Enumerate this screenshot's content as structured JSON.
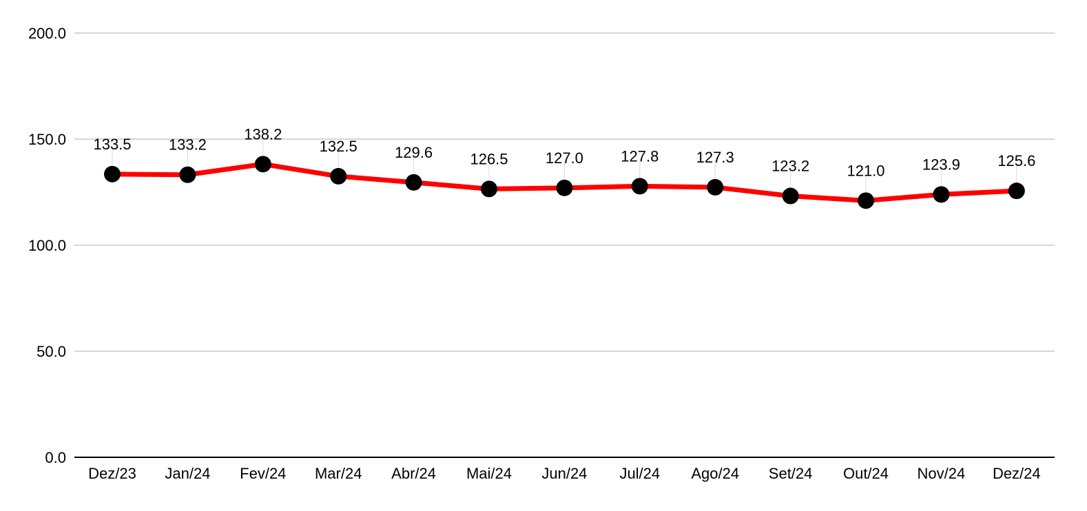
{
  "chart_data": {
    "type": "line",
    "title": "",
    "xlabel": "",
    "ylabel": "",
    "categories": [
      "Dez/23",
      "Jan/24",
      "Fev/24",
      "Mar/24",
      "Abr/24",
      "Mai/24",
      "Jun/24",
      "Jul/24",
      "Ago/24",
      "Set/24",
      "Out/24",
      "Nov/24",
      "Dez/24"
    ],
    "series": [
      {
        "values": [
          133.5,
          133.2,
          138.2,
          132.5,
          129.6,
          126.5,
          127.0,
          127.8,
          127.3,
          123.2,
          121.0,
          123.9,
          125.6
        ],
        "data_labels": [
          "133.5",
          "133.2",
          "138.2",
          "132.5",
          "129.6",
          "126.5",
          "127.0",
          "127.8",
          "127.3",
          "123.2",
          "121.0",
          "123.9",
          "125.6"
        ],
        "line_color": "#ff0000",
        "marker_color": "#000000"
      }
    ],
    "ylim": [
      0,
      200
    ],
    "y_ticks": [
      0,
      50,
      100,
      150,
      200
    ],
    "y_tick_labels": [
      "0.0",
      "50.0",
      "100.0",
      "150.0",
      "200.0"
    ],
    "grid": true,
    "legend": "none",
    "colors": {
      "grid": "#c8c8c8",
      "axis": "#000000",
      "leader": "#d9d9d9"
    }
  }
}
